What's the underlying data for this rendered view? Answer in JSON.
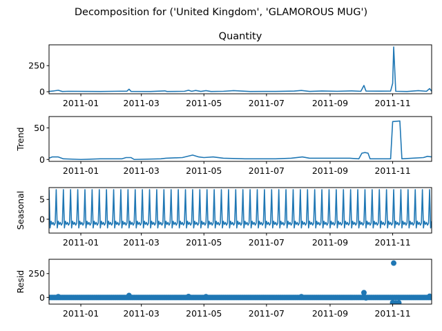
{
  "chart_data": {
    "type": "line",
    "suptitle": "Decomposition for ('United Kingdom', 'GLAMOROUS  MUG')",
    "color": "#1f77b4",
    "x_range": [
      "2010-12-01",
      "2011-12-09"
    ],
    "x_ticks": [
      "2011-01",
      "2011-03",
      "2011-05",
      "2011-07",
      "2011-09",
      "2011-11"
    ],
    "grid": false,
    "panels": [
      {
        "key": "observed",
        "title": "Quantity",
        "ylabel": "",
        "style": "line",
        "ylim": [
          -20,
          450
        ],
        "yticks": [
          "0",
          "250"
        ],
        "points": [
          [
            "2010-12-01",
            3
          ],
          [
            "2010-12-06",
            8
          ],
          [
            "2010-12-10",
            14
          ],
          [
            "2010-12-14",
            2
          ],
          [
            "2010-12-20",
            4
          ],
          [
            "2011-01-06",
            3
          ],
          [
            "2011-01-20",
            2
          ],
          [
            "2011-02-03",
            4
          ],
          [
            "2011-02-15",
            5
          ],
          [
            "2011-02-17",
            24
          ],
          [
            "2011-02-19",
            3
          ],
          [
            "2011-03-10",
            2
          ],
          [
            "2011-03-24",
            8
          ],
          [
            "2011-03-26",
            2
          ],
          [
            "2011-04-12",
            4
          ],
          [
            "2011-04-16",
            14
          ],
          [
            "2011-04-19",
            4
          ],
          [
            "2011-04-23",
            12
          ],
          [
            "2011-04-28",
            3
          ],
          [
            "2011-05-03",
            10
          ],
          [
            "2011-05-08",
            2
          ],
          [
            "2011-05-20",
            4
          ],
          [
            "2011-05-30",
            10
          ],
          [
            "2011-06-15",
            2
          ],
          [
            "2011-07-10",
            3
          ],
          [
            "2011-07-28",
            6
          ],
          [
            "2011-08-04",
            12
          ],
          [
            "2011-08-12",
            3
          ],
          [
            "2011-08-24",
            7
          ],
          [
            "2011-09-08",
            4
          ],
          [
            "2011-09-22",
            8
          ],
          [
            "2011-10-01",
            4
          ],
          [
            "2011-10-04",
            60
          ],
          [
            "2011-10-06",
            6
          ],
          [
            "2011-10-20",
            5
          ],
          [
            "2011-10-30",
            6
          ],
          [
            "2011-11-01",
            80
          ],
          [
            "2011-11-02",
            430
          ],
          [
            "2011-11-04",
            4
          ],
          [
            "2011-11-15",
            2
          ],
          [
            "2011-11-26",
            10
          ],
          [
            "2011-12-04",
            4
          ],
          [
            "2011-12-07",
            30
          ],
          [
            "2011-12-09",
            5
          ]
        ]
      },
      {
        "key": "trend",
        "title": "",
        "ylabel": "Trend",
        "style": "line",
        "ylim": [
          -3,
          68
        ],
        "yticks": [
          "0",
          "50"
        ],
        "points": [
          [
            "2010-12-01",
            2
          ],
          [
            "2010-12-04",
            4
          ],
          [
            "2010-12-10",
            4
          ],
          [
            "2010-12-15",
            1
          ],
          [
            "2011-01-01",
            0
          ],
          [
            "2011-01-20",
            1
          ],
          [
            "2011-02-10",
            1
          ],
          [
            "2011-02-14",
            3
          ],
          [
            "2011-02-19",
            3
          ],
          [
            "2011-02-22",
            0
          ],
          [
            "2011-03-20",
            1
          ],
          [
            "2011-03-25",
            2
          ],
          [
            "2011-04-10",
            3
          ],
          [
            "2011-04-20",
            7
          ],
          [
            "2011-04-26",
            4
          ],
          [
            "2011-05-01",
            3
          ],
          [
            "2011-05-10",
            4
          ],
          [
            "2011-05-20",
            2
          ],
          [
            "2011-06-10",
            1
          ],
          [
            "2011-07-10",
            1
          ],
          [
            "2011-07-25",
            2
          ],
          [
            "2011-08-05",
            4
          ],
          [
            "2011-08-12",
            2
          ],
          [
            "2011-08-25",
            2
          ],
          [
            "2011-09-20",
            2
          ],
          [
            "2011-09-29",
            1
          ],
          [
            "2011-10-02",
            10
          ],
          [
            "2011-10-05",
            11
          ],
          [
            "2011-10-08",
            10
          ],
          [
            "2011-10-10",
            1
          ],
          [
            "2011-10-25",
            1
          ],
          [
            "2011-10-30",
            1
          ],
          [
            "2011-11-01",
            60
          ],
          [
            "2011-11-08",
            61
          ],
          [
            "2011-11-10",
            1
          ],
          [
            "2011-11-20",
            2
          ],
          [
            "2011-12-01",
            3
          ],
          [
            "2011-12-05",
            5
          ],
          [
            "2011-12-09",
            4
          ]
        ]
      },
      {
        "key": "seasonal",
        "title": "",
        "ylabel": "Seasonal",
        "style": "seasonal",
        "ylim": [
          -3.5,
          8
        ],
        "yticks": [
          "0",
          "5"
        ],
        "period_days": 7,
        "pattern": [
          7.5,
          -2.2,
          -0.5,
          -1.3,
          -0.8,
          -1.5,
          -1.0
        ]
      },
      {
        "key": "resid",
        "title": "",
        "ylabel": "Resid",
        "style": "scatter",
        "ylim": [
          -70,
          400
        ],
        "yticks": [
          "0",
          "250"
        ],
        "baseline": 0,
        "outliers": [
          [
            "2010-12-10",
            8
          ],
          [
            "2011-02-17",
            20
          ],
          [
            "2011-04-16",
            10
          ],
          [
            "2011-05-03",
            8
          ],
          [
            "2011-08-04",
            8
          ],
          [
            "2011-10-04",
            50
          ],
          [
            "2011-10-06",
            -5
          ],
          [
            "2011-11-01",
            -55
          ],
          [
            "2011-11-02",
            360
          ],
          [
            "2011-11-04",
            -58
          ],
          [
            "2011-11-07",
            -56
          ],
          [
            "2011-12-07",
            12
          ]
        ]
      }
    ]
  }
}
